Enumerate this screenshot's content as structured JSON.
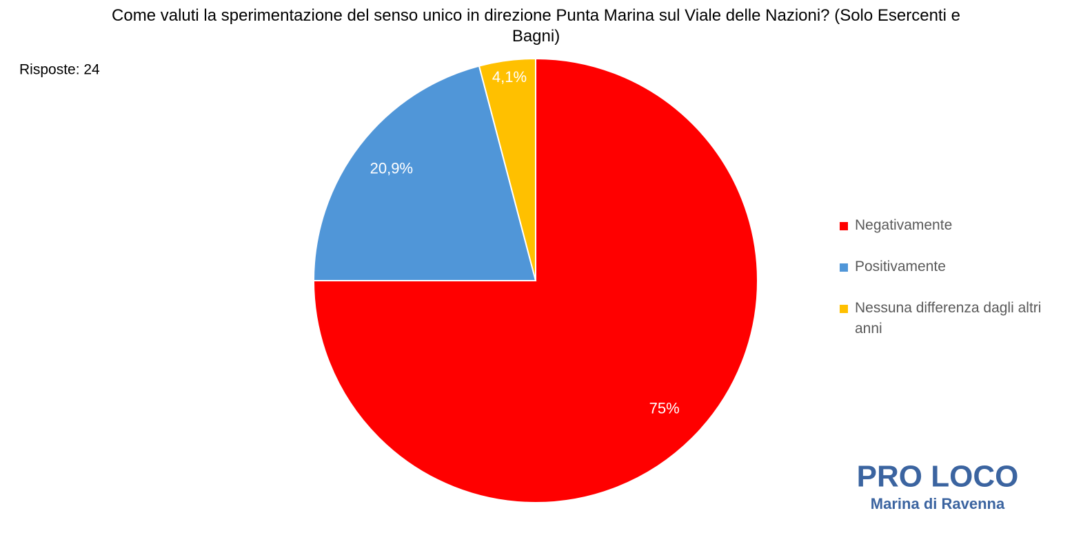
{
  "chart_data": {
    "type": "pie",
    "title": "Come valuti la sperimentazione del senso unico in direzione Punta Marina sul Viale delle Nazioni? (Solo Esercenti e Bagni)",
    "annotation": "Risposte: 24",
    "categories": [
      "Negativamente",
      "Positivamente",
      "Nessuna differenza dagli altri anni"
    ],
    "values": [
      75,
      20.9,
      4.1
    ],
    "value_labels": [
      "75%",
      "20,9%",
      "4,1%"
    ],
    "colors": [
      "#ff0000",
      "#5096d8",
      "#ffc000"
    ],
    "legend": "right"
  },
  "logo": {
    "name": "PRO LOCO",
    "place": "Marina di Ravenna"
  }
}
